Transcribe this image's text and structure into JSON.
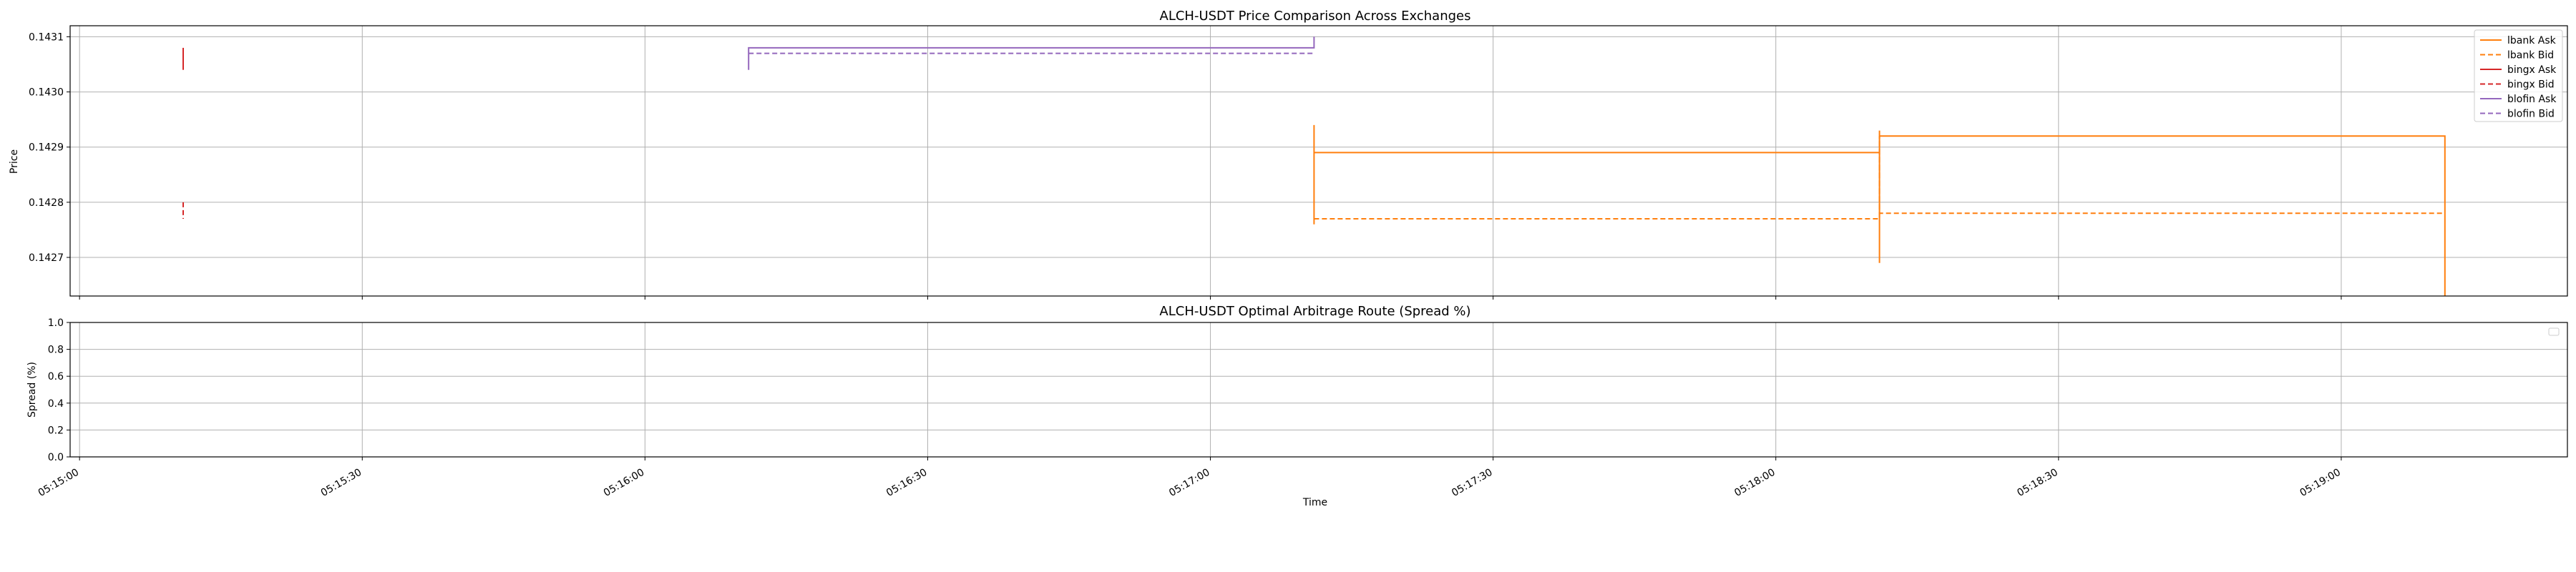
{
  "chart_data": [
    {
      "type": "line",
      "title": "ALCH-USDT Price Comparison Across Exchanges",
      "xlabel": "",
      "ylabel": "Price",
      "xlim": [
        "05:14:59",
        "05:19:24"
      ],
      "ylim": [
        0.14263,
        0.14312
      ],
      "yticks": [
        "0.1427",
        "0.1428",
        "0.1429",
        "0.1430",
        "0.1431"
      ],
      "grid": true,
      "legend_position": "top-right",
      "series": [
        {
          "name": "lbank Ask",
          "color": "#ff7f0e",
          "dash": "solid",
          "points": [
            [
              "05:17:11",
              0.14294
            ],
            [
              "05:17:11",
              0.14276
            ],
            [
              "05:17:11",
              0.14289
            ],
            [
              "05:18:11",
              0.14289
            ],
            [
              "05:18:11",
              0.14269
            ],
            [
              "05:18:11",
              0.14293
            ],
            [
              "05:18:11",
              0.14292
            ],
            [
              "05:19:11",
              0.14292
            ],
            [
              "05:19:11",
              0.14263
            ]
          ]
        },
        {
          "name": "lbank Bid",
          "color": "#ff7f0e",
          "dash": "dashed",
          "points": [
            [
              "05:17:11",
              0.14277
            ],
            [
              "05:18:11",
              0.14277
            ],
            [
              "05:18:11",
              0.14292
            ],
            [
              "05:18:11",
              0.14278
            ],
            [
              "05:19:11",
              0.14278
            ]
          ]
        },
        {
          "name": "bingx Ask",
          "color": "#d62728",
          "dash": "solid",
          "points": [
            [
              "05:15:11",
              0.14308
            ],
            [
              "05:15:11",
              0.14304
            ]
          ]
        },
        {
          "name": "bingx Bid",
          "color": "#d62728",
          "dash": "dashed",
          "points": [
            [
              "05:15:11",
              0.1428
            ],
            [
              "05:15:11",
              0.14277
            ]
          ]
        },
        {
          "name": "blofin Ask",
          "color": "#9467bd",
          "dash": "solid",
          "points": [
            [
              "05:16:11",
              0.14304
            ],
            [
              "05:16:11",
              0.14308
            ],
            [
              "05:17:11",
              0.14308
            ],
            [
              "05:17:11",
              0.1431
            ]
          ]
        },
        {
          "name": "blofin Bid",
          "color": "#9467bd",
          "dash": "dashed",
          "points": [
            [
              "05:16:11",
              0.14307
            ],
            [
              "05:17:11",
              0.14307
            ]
          ]
        }
      ]
    },
    {
      "type": "line",
      "title": "ALCH-USDT Optimal Arbitrage Route (Spread %)",
      "xlabel": "Time",
      "ylabel": "Spread (%)",
      "xlim": [
        "05:14:59",
        "05:19:24"
      ],
      "ylim": [
        0.0,
        1.0
      ],
      "yticks": [
        "0.0",
        "0.2",
        "0.4",
        "0.6",
        "0.8",
        "1.0"
      ],
      "xticks": [
        "05:15:00",
        "05:15:30",
        "05:16:00",
        "05:16:30",
        "05:17:00",
        "05:17:30",
        "05:18:00",
        "05:18:30",
        "05:19:00"
      ],
      "grid": true,
      "legend_position": "top-right",
      "series": []
    }
  ]
}
